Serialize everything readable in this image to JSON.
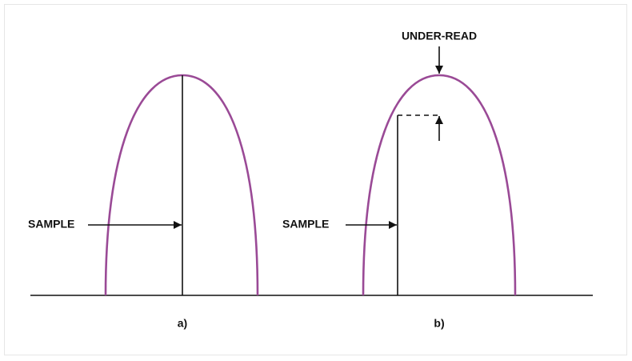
{
  "panels": [
    {
      "caption": "a)",
      "sample_label": "SAMPLE"
    },
    {
      "caption": "b)",
      "sample_label": "SAMPLE",
      "peak_label": "UNDER-READ"
    }
  ]
}
